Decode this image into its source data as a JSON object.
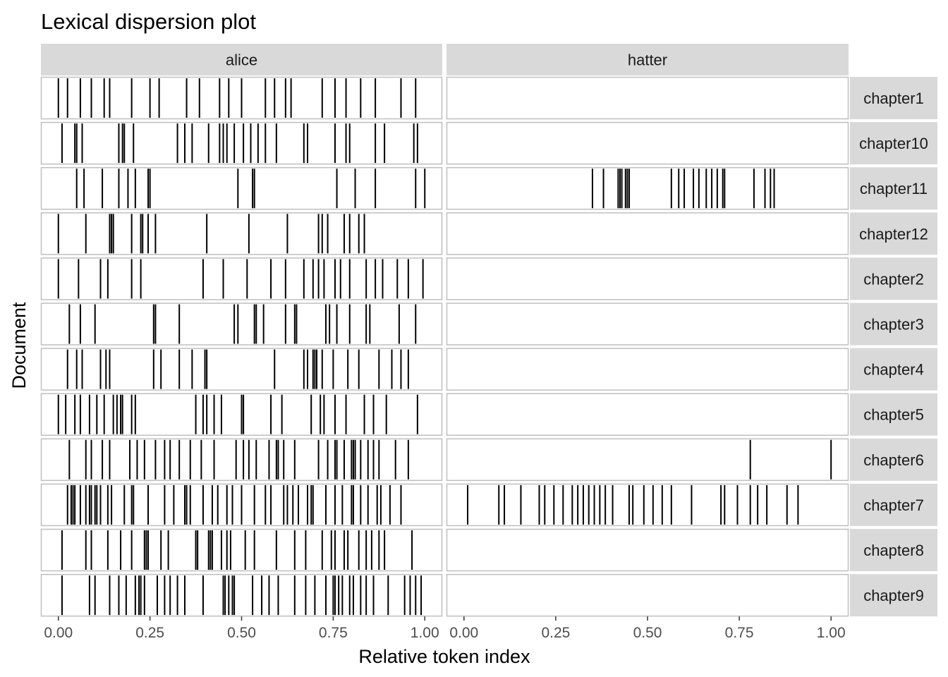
{
  "chart_data": {
    "type": "lexical-dispersion",
    "title": "Lexical dispersion plot",
    "xlabel": "Relative token index",
    "ylabel": "Document",
    "xlim": [
      0,
      1
    ],
    "xticks": [
      0,
      0.25,
      0.5,
      0.75,
      1
    ],
    "xtick_labels": [
      "0.00",
      "0.25",
      "0.50",
      "0.75",
      "1.00"
    ],
    "grid": false,
    "facets": [
      "alice",
      "hatter"
    ],
    "documents": [
      "chapter1",
      "chapter10",
      "chapter11",
      "chapter12",
      "chapter2",
      "chapter3",
      "chapter4",
      "chapter5",
      "chapter6",
      "chapter7",
      "chapter8",
      "chapter9"
    ],
    "colors": {
      "panel_bg": "#ffffff",
      "panel_border": "#bfbfbf",
      "strip_bg": "#d9d9d9",
      "mark": "#000000"
    },
    "positions": {
      "alice": {
        "chapter1": [
          0.0,
          0.025,
          0.06,
          0.09,
          0.125,
          0.14,
          0.2,
          0.25,
          0.275,
          0.35,
          0.385,
          0.44,
          0.465,
          0.5,
          0.565,
          0.59,
          0.62,
          0.635,
          0.72,
          0.755,
          0.785,
          0.825,
          0.865,
          0.935,
          0.975
        ],
        "chapter10": [
          0.01,
          0.045,
          0.05,
          0.065,
          0.165,
          0.175,
          0.18,
          0.205,
          0.325,
          0.345,
          0.365,
          0.41,
          0.44,
          0.45,
          0.46,
          0.48,
          0.505,
          0.525,
          0.545,
          0.565,
          0.595,
          0.67,
          0.68,
          0.755,
          0.785,
          0.795,
          0.865,
          0.89,
          0.97,
          0.98
        ],
        "chapter11": [
          0.05,
          0.07,
          0.12,
          0.165,
          0.19,
          0.21,
          0.245,
          0.25,
          0.49,
          0.53,
          0.535,
          0.76,
          0.81,
          0.865,
          0.975,
          1.0
        ],
        "chapter12": [
          0.0,
          0.075,
          0.14,
          0.145,
          0.15,
          0.2,
          0.225,
          0.23,
          0.245,
          0.265,
          0.405,
          0.52,
          0.625,
          0.71,
          0.72,
          0.735,
          0.78,
          0.795,
          0.82,
          0.835
        ],
        "chapter2": [
          0.0,
          0.055,
          0.115,
          0.135,
          0.2,
          0.225,
          0.395,
          0.45,
          0.515,
          0.58,
          0.62,
          0.67,
          0.695,
          0.71,
          0.725,
          0.755,
          0.77,
          0.795,
          0.84,
          0.865,
          0.885,
          0.925,
          0.955,
          0.995
        ],
        "chapter3": [
          0.03,
          0.06,
          0.1,
          0.26,
          0.265,
          0.33,
          0.48,
          0.49,
          0.535,
          0.54,
          0.56,
          0.62,
          0.645,
          0.65,
          0.73,
          0.74,
          0.76,
          0.795,
          0.84,
          0.85,
          0.93,
          0.975
        ],
        "chapter4": [
          0.025,
          0.05,
          0.065,
          0.115,
          0.13,
          0.14,
          0.26,
          0.28,
          0.33,
          0.365,
          0.4,
          0.405,
          0.59,
          0.67,
          0.68,
          0.695,
          0.7,
          0.705,
          0.72,
          0.75,
          0.79,
          0.82,
          0.875,
          0.91,
          0.935,
          0.955
        ],
        "chapter5": [
          0.0,
          0.02,
          0.045,
          0.06,
          0.085,
          0.105,
          0.125,
          0.15,
          0.16,
          0.17,
          0.175,
          0.2,
          0.21,
          0.375,
          0.395,
          0.405,
          0.425,
          0.445,
          0.5,
          0.505,
          0.58,
          0.61,
          0.69,
          0.715,
          0.725,
          0.755,
          0.785,
          0.835,
          0.86,
          0.895,
          0.98
        ],
        "chapter6": [
          0.03,
          0.075,
          0.09,
          0.12,
          0.14,
          0.195,
          0.215,
          0.235,
          0.265,
          0.29,
          0.305,
          0.33,
          0.36,
          0.39,
          0.425,
          0.485,
          0.505,
          0.52,
          0.54,
          0.575,
          0.595,
          0.6,
          0.615,
          0.645,
          0.71,
          0.735,
          0.755,
          0.76,
          0.78,
          0.8,
          0.805,
          0.81,
          0.825,
          0.845,
          0.86,
          0.875,
          0.92,
          0.955
        ],
        "chapter7": [
          0.025,
          0.035,
          0.04,
          0.045,
          0.06,
          0.075,
          0.085,
          0.09,
          0.1,
          0.105,
          0.115,
          0.135,
          0.145,
          0.18,
          0.2,
          0.205,
          0.245,
          0.29,
          0.315,
          0.345,
          0.35,
          0.36,
          0.395,
          0.42,
          0.435,
          0.46,
          0.475,
          0.5,
          0.535,
          0.565,
          0.58,
          0.615,
          0.625,
          0.64,
          0.655,
          0.68,
          0.69,
          0.695,
          0.73,
          0.755,
          0.775,
          0.8,
          0.805,
          0.825,
          0.845,
          0.87,
          0.88,
          0.905,
          0.935
        ],
        "chapter8": [
          0.01,
          0.075,
          0.09,
          0.135,
          0.17,
          0.2,
          0.235,
          0.24,
          0.245,
          0.28,
          0.3,
          0.375,
          0.38,
          0.41,
          0.415,
          0.42,
          0.445,
          0.46,
          0.47,
          0.51,
          0.535,
          0.595,
          0.645,
          0.675,
          0.72,
          0.745,
          0.755,
          0.78,
          0.79,
          0.82,
          0.84,
          0.855,
          0.875,
          0.89,
          0.965
        ],
        "chapter9": [
          0.01,
          0.085,
          0.1,
          0.14,
          0.165,
          0.185,
          0.21,
          0.22,
          0.225,
          0.235,
          0.27,
          0.29,
          0.305,
          0.325,
          0.345,
          0.395,
          0.45,
          0.455,
          0.465,
          0.475,
          0.48,
          0.53,
          0.555,
          0.575,
          0.6,
          0.645,
          0.675,
          0.7,
          0.73,
          0.75,
          0.755,
          0.765,
          0.775,
          0.795,
          0.805,
          0.825,
          0.84,
          0.86,
          0.9,
          0.945,
          0.96,
          0.975,
          0.99
        ]
      },
      "hatter": {
        "chapter1": [],
        "chapter10": [],
        "chapter11": [
          0.35,
          0.38,
          0.42,
          0.425,
          0.43,
          0.44,
          0.445,
          0.45,
          0.565,
          0.585,
          0.6,
          0.625,
          0.64,
          0.66,
          0.675,
          0.69,
          0.705,
          0.71,
          0.79,
          0.82,
          0.835,
          0.845
        ],
        "chapter12": [],
        "chapter2": [],
        "chapter3": [],
        "chapter4": [],
        "chapter5": [],
        "chapter6": [
          0.78,
          1.0
        ],
        "chapter7": [
          0.01,
          0.095,
          0.11,
          0.155,
          0.205,
          0.22,
          0.245,
          0.27,
          0.295,
          0.31,
          0.325,
          0.34,
          0.355,
          0.37,
          0.385,
          0.405,
          0.45,
          0.46,
          0.49,
          0.515,
          0.54,
          0.565,
          0.62,
          0.7,
          0.71,
          0.745,
          0.78,
          0.8,
          0.825,
          0.88,
          0.91
        ]
      }
    }
  }
}
